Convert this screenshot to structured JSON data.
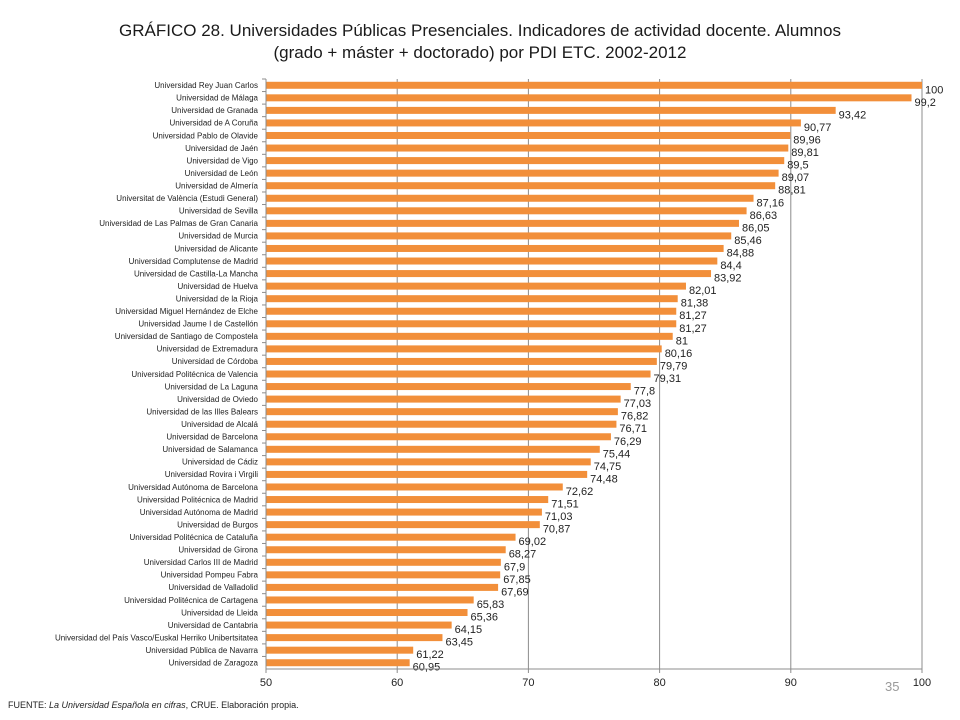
{
  "title": {
    "line1": "GRÁFICO 28. Universidades Públicas Presenciales. Indicadores de actividad docente. Alumnos",
    "line2": "(grado + máster + doctorado) por PDI ETC. 2002-2012"
  },
  "source": {
    "prefix": "FUENTE: ",
    "italic": "La Universidad Española en cifras",
    "suffix": ", CRUE. Elaboración propia."
  },
  "page_number": "35",
  "chart_data": {
    "type": "bar",
    "orientation": "horizontal",
    "bar_color": "#F28F3A",
    "xlim": [
      50,
      100
    ],
    "x_ticks": [
      50,
      60,
      70,
      80,
      90,
      100
    ],
    "grid": "vertical",
    "categories": [
      "Universidad Rey Juan Carlos",
      "Universidad de Málaga",
      "Universidad de Granada",
      "Universidad de A Coruña",
      "Universidad Pablo de Olavide",
      "Universidad de Jaén",
      "Universidad de Vigo",
      "Universidad de León",
      "Universidad de Almería",
      "Universitat de València (Estudi General)",
      "Universidad de Sevilla",
      "Universidad de Las Palmas de Gran Canaria",
      "Universidad de Murcia",
      "Universidad de Alicante",
      "Universidad Complutense de Madrid",
      "Universidad de Castilla-La Mancha",
      "Universidad de Huelva",
      "Universidad de la Rioja",
      "Universidad Miguel Hernández de Elche",
      "Universidad Jaume I de Castellón",
      "Universidad de Santiago de Compostela",
      "Universidad de Extremadura",
      "Universidad de Córdoba",
      "Universidad Politécnica de Valencia",
      "Universidad de La Laguna",
      "Universidad de Oviedo",
      "Universidad de las Illes Balears",
      "Universidad de Alcalá",
      "Universidad de Barcelona",
      "Universidad de Salamanca",
      "Universidad de Cádiz",
      "Universidad Rovira i Virgili",
      "Universidad Autónoma de Barcelona",
      "Universidad Politécnica de Madrid",
      "Universidad Autónoma de Madrid",
      "Universidad de Burgos",
      "Universidad Politécnica de Cataluña",
      "Universidad de Girona",
      "Universidad Carlos III de Madrid",
      "Universidad Pompeu Fabra",
      "Universidad de Valladolid",
      "Universidad Politécnica de Cartagena",
      "Universidad de Lleida",
      "Universidad de Cantabria",
      "Universidad del País Vasco/Euskal Herriko Unibertsitatea",
      "Universidad Pública de Navarra",
      "Universidad de Zaragoza"
    ],
    "values": [
      100,
      99.2,
      93.42,
      90.77,
      89.96,
      89.81,
      89.5,
      89.07,
      88.81,
      87.16,
      86.63,
      86.05,
      85.46,
      84.88,
      84.4,
      83.92,
      82.01,
      81.38,
      81.27,
      81.27,
      81,
      80.16,
      79.79,
      79.31,
      77.8,
      77.03,
      76.82,
      76.71,
      76.29,
      75.44,
      74.75,
      74.48,
      72.62,
      71.51,
      71.03,
      70.87,
      69.02,
      68.27,
      67.9,
      67.85,
      67.69,
      65.83,
      65.36,
      64.15,
      63.45,
      61.22,
      60.95
    ],
    "value_labels": [
      "100",
      "99,2",
      "93,42",
      "90,77",
      "89,96",
      "89,81",
      "89,5",
      "89,07",
      "88,81",
      "87,16",
      "86,63",
      "86,05",
      "85,46",
      "84,88",
      "84,4",
      "83,92",
      "82,01",
      "81,38",
      "81,27",
      "81,27",
      "81",
      "80,16",
      "79,79",
      "79,31",
      "77,8",
      "77,03",
      "76,82",
      "76,71",
      "76,29",
      "75,44",
      "74,75",
      "74,48",
      "72,62",
      "71,51",
      "71,03",
      "70,87",
      "69,02",
      "68,27",
      "67,9",
      "67,85",
      "67,69",
      "65,83",
      "65,36",
      "64,15",
      "63,45",
      "61,22",
      "60,95"
    ]
  }
}
